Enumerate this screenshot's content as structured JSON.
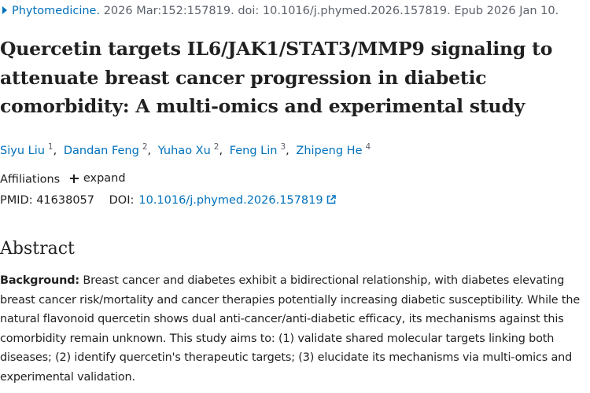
{
  "citation": {
    "journal": "Phytomedicine.",
    "details": "2026 Mar:152:157819. doi: 10.1016/j.phymed.2026.157819. Epub 2026 Jan 10."
  },
  "article": {
    "title": "Quercetin targets IL6/JAK1/STAT3/MMP9 signaling to attenuate breast cancer progression in diabetic comorbidity: A multi-omics and experimental study"
  },
  "authors": [
    {
      "name": "Siyu Liu",
      "affiliation": "1"
    },
    {
      "name": "Dandan Feng",
      "affiliation": "2"
    },
    {
      "name": "Yuhao Xu",
      "affiliation": "2"
    },
    {
      "name": "Feng Lin",
      "affiliation": "3"
    },
    {
      "name": "Zhipeng He",
      "affiliation": "4"
    }
  ],
  "affiliations": {
    "label": "Affiliations",
    "expand_label": "expand"
  },
  "identifiers": {
    "pmid_label": "PMID:",
    "pmid": "41638057",
    "doi_label": "DOI:",
    "doi": "10.1016/j.phymed.2026.157819"
  },
  "abstract": {
    "heading": "Abstract",
    "background_label": "Background:",
    "background_text": "Breast cancer and diabetes exhibit a bidirectional relationship, with diabetes elevating breast cancer risk/mortality and cancer therapies potentially increasing diabetic susceptibility. While the natural flavonoid quercetin shows dual anti-cancer/anti-diabetic efficacy, its mechanisms against this comorbidity remain unknown. This study aims to: (1) validate shared molecular targets linking both diseases; (2) identify quercetin's therapeutic targets; (3) elucidate its mechanisms via multi-omics and experimental validation."
  },
  "colors": {
    "link": "#0071bc",
    "text": "#212121",
    "muted": "#5b616b"
  },
  "icons": {
    "journal_caret": "caret-right-icon",
    "expand": "plus-icon",
    "doi_external": "external-link-icon"
  }
}
